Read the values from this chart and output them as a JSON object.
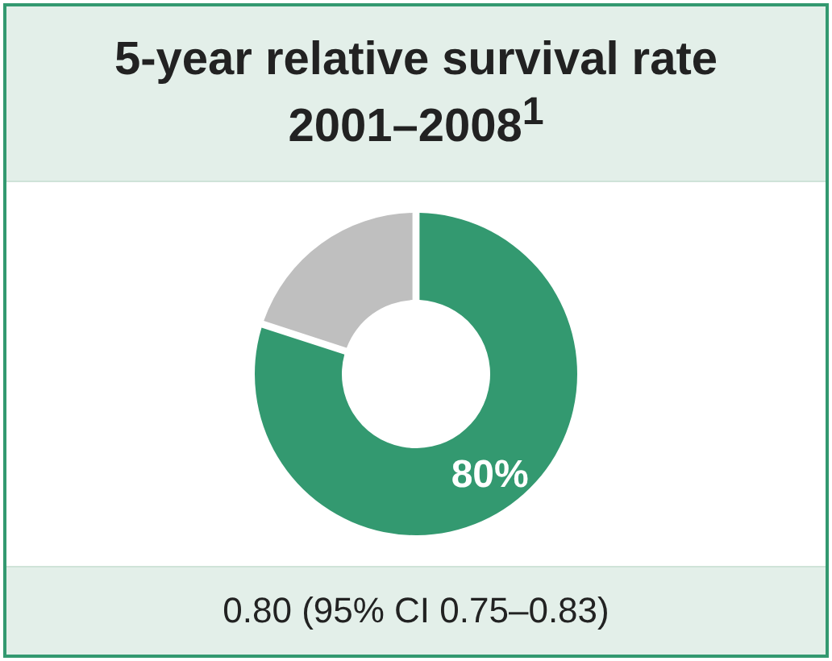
{
  "chart_data": {
    "type": "donut",
    "title": "5-year relative survival rate 2001–2008$^{1}$",
    "categories": [
      null,
      null
    ],
    "values": [
      80,
      20
    ],
    "colors": [
      "#339970",
      "#bfbfbf"
    ],
    "value_labels": [
      "80%",
      null
    ],
    "annotations": [
      "0.80 (95% CI 0.75–0.83)"
    ],
    "legend": false
  }
}
